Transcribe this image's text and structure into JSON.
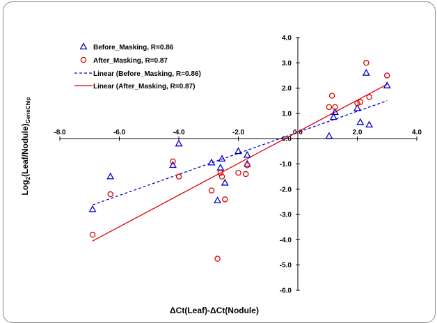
{
  "chart_data": {
    "type": "scatter",
    "xlabel": "ΔCt(Leaf)-ΔCt(Nodule)",
    "ylabel_main": "Log",
    "ylabel_sub1": "2",
    "ylabel_mid": "(Leaf/Nodule)",
    "ylabel_sub2": "GeneChip",
    "xlim": [
      -8,
      4
    ],
    "ylim": [
      -6,
      4
    ],
    "x_ticks": [
      "-8.0",
      "-6.0",
      "-4.0",
      "-2.0",
      "0.0",
      "2.0",
      "4.0"
    ],
    "x_tick_values": [
      -8,
      -6,
      -4,
      -2,
      0,
      2,
      4
    ],
    "y_ticks": [
      "4.0",
      "3.0",
      "2.0",
      "1.0",
      "0.0",
      "-1.0",
      "-2.0",
      "-3.0",
      "-4.0",
      "-5.0",
      "-6.0"
    ],
    "y_tick_values": [
      4,
      3,
      2,
      1,
      0,
      -1,
      -2,
      -3,
      -4,
      -5,
      -6
    ],
    "legend_position": "top-left",
    "series": [
      {
        "name": "Before_Masking, R=0.86",
        "marker": "triangle",
        "color": "#0000cc",
        "points": [
          [
            -6.9,
            -2.8
          ],
          [
            -6.3,
            -1.5
          ],
          [
            -4.0,
            -0.2
          ],
          [
            -4.2,
            -1.05
          ],
          [
            -2.9,
            -0.95
          ],
          [
            -2.6,
            -1.15
          ],
          [
            -2.55,
            -0.8
          ],
          [
            -2.7,
            -2.45
          ],
          [
            -2.45,
            -1.75
          ],
          [
            -2.0,
            -0.5
          ],
          [
            -1.7,
            -0.65
          ],
          [
            -1.7,
            -1.0
          ],
          [
            1.05,
            0.1
          ],
          [
            1.2,
            0.85
          ],
          [
            1.25,
            1.05
          ],
          [
            2.0,
            1.2
          ],
          [
            2.1,
            0.65
          ],
          [
            2.3,
            2.6
          ],
          [
            2.4,
            0.55
          ],
          [
            3.0,
            2.1
          ]
        ]
      },
      {
        "name": "After_Masking, R=0.87",
        "marker": "circle",
        "color": "#dd0000",
        "points": [
          [
            -6.9,
            -3.8
          ],
          [
            -6.3,
            -2.2
          ],
          [
            -4.2,
            -0.9
          ],
          [
            -4.0,
            -1.5
          ],
          [
            -2.9,
            -2.05
          ],
          [
            -2.6,
            -1.35
          ],
          [
            -2.55,
            -1.5
          ],
          [
            -2.7,
            -4.75
          ],
          [
            -2.45,
            -2.4
          ],
          [
            -2.0,
            -1.35
          ],
          [
            -1.7,
            -1.05
          ],
          [
            -1.75,
            -1.4
          ],
          [
            1.05,
            1.25
          ],
          [
            1.15,
            1.7
          ],
          [
            1.25,
            1.25
          ],
          [
            2.0,
            1.4
          ],
          [
            2.1,
            1.45
          ],
          [
            2.3,
            3.0
          ],
          [
            2.4,
            1.65
          ],
          [
            3.0,
            2.5
          ]
        ]
      }
    ],
    "trendlines": [
      {
        "name": "Linear (Before_Masking, R=0.86)",
        "color": "#0000cc",
        "dash": true,
        "x": [
          -6.9,
          3.0
        ],
        "y": [
          -2.62,
          1.5
        ]
      },
      {
        "name": "Linear (After_Masking, R=0.87)",
        "color": "#dd0000",
        "dash": false,
        "x": [
          -6.9,
          3.0
        ],
        "y": [
          -4.05,
          2.15
        ]
      }
    ]
  }
}
